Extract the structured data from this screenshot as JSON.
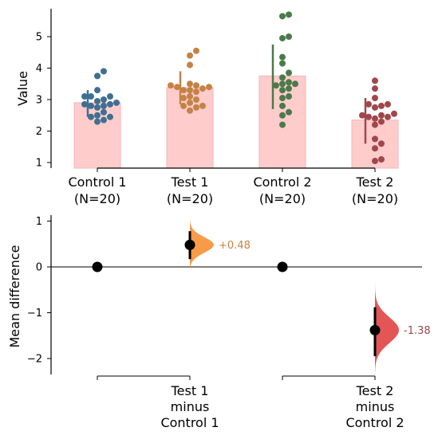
{
  "chart_data": [
    {
      "type": "bar",
      "ylabel": "Value",
      "ylim": [
        0.85,
        5.9
      ],
      "yticks": [
        1,
        2,
        3,
        4,
        5
      ],
      "categories": [
        {
          "name": "Control 1",
          "n_label": "(N=20)",
          "mean": 2.9,
          "bar_color": "#ffcccc",
          "dot_color": "#3f6f91",
          "ci": [
            2.45,
            3.3
          ],
          "points": [
            3.9,
            3.75,
            3.3,
            3.1,
            3.1,
            3.1,
            3.0,
            2.95,
            2.9,
            2.85,
            2.85,
            2.8,
            2.8,
            2.75,
            2.6,
            2.5,
            2.45,
            2.45,
            2.35,
            2.3
          ]
        },
        {
          "name": "Test 1",
          "n_label": "(N=20)",
          "mean": 3.38,
          "bar_color": "#ffcccc",
          "dot_color": "#c58245",
          "ci": [
            2.85,
            3.9
          ],
          "points": [
            4.55,
            4.4,
            4.1,
            3.5,
            3.45,
            3.45,
            3.4,
            3.4,
            3.35,
            3.3,
            3.3,
            3.25,
            3.1,
            3.05,
            3.0,
            2.9,
            2.8,
            2.8,
            2.75,
            2.65
          ]
        },
        {
          "name": "Control 2",
          "n_label": "(N=20)",
          "mean": 3.75,
          "bar_color": "#ffcccc",
          "dot_color": "#4a7a49",
          "ci": [
            2.7,
            4.75
          ],
          "points": [
            5.7,
            5.65,
            5.0,
            4.95,
            4.35,
            4.15,
            3.85,
            3.7,
            3.55,
            3.5,
            3.5,
            3.45,
            3.35,
            3.3,
            3.1,
            3.05,
            2.8,
            2.6,
            2.5,
            2.2
          ]
        },
        {
          "name": "Test 2",
          "n_label": "(N=20)",
          "mean": 2.35,
          "bar_color": "#ffcccc",
          "dot_color": "#a0474a",
          "ci": [
            1.6,
            3.05
          ],
          "points": [
            3.6,
            3.35,
            3.05,
            2.85,
            2.85,
            2.8,
            2.75,
            2.55,
            2.5,
            2.5,
            2.45,
            2.45,
            2.4,
            2.3,
            2.2,
            1.75,
            1.6,
            1.45,
            1.1,
            1.05
          ]
        }
      ]
    },
    {
      "type": "scatter",
      "ylabel": "Mean difference",
      "ylim": [
        -2.4,
        1.1
      ],
      "yticks": [
        1,
        0,
        -1,
        -2
      ],
      "ytick_labels": [
        "1",
        "0",
        "−1",
        "−2"
      ],
      "groups": [
        {
          "reference": "Control 1",
          "reference_value": 0,
          "test_line1": "Test 1",
          "test_line2": "minus",
          "test_line3": "Control 1",
          "difference": 0.48,
          "label": "+0.48",
          "ci": [
            0.17,
            0.78
          ],
          "dist_color": "#f7963e",
          "label_color": "#c58245",
          "spread": 0.17
        },
        {
          "reference": "Control 2",
          "reference_value": 0,
          "test_line1": "Test 2",
          "test_line2": "minus",
          "test_line3": "Control 2",
          "difference": -1.38,
          "label": "-1.38",
          "ci": [
            -1.95,
            -0.88
          ],
          "dist_color": "#e34d4d",
          "label_color": "#a0474a",
          "spread": 0.28
        }
      ]
    }
  ]
}
